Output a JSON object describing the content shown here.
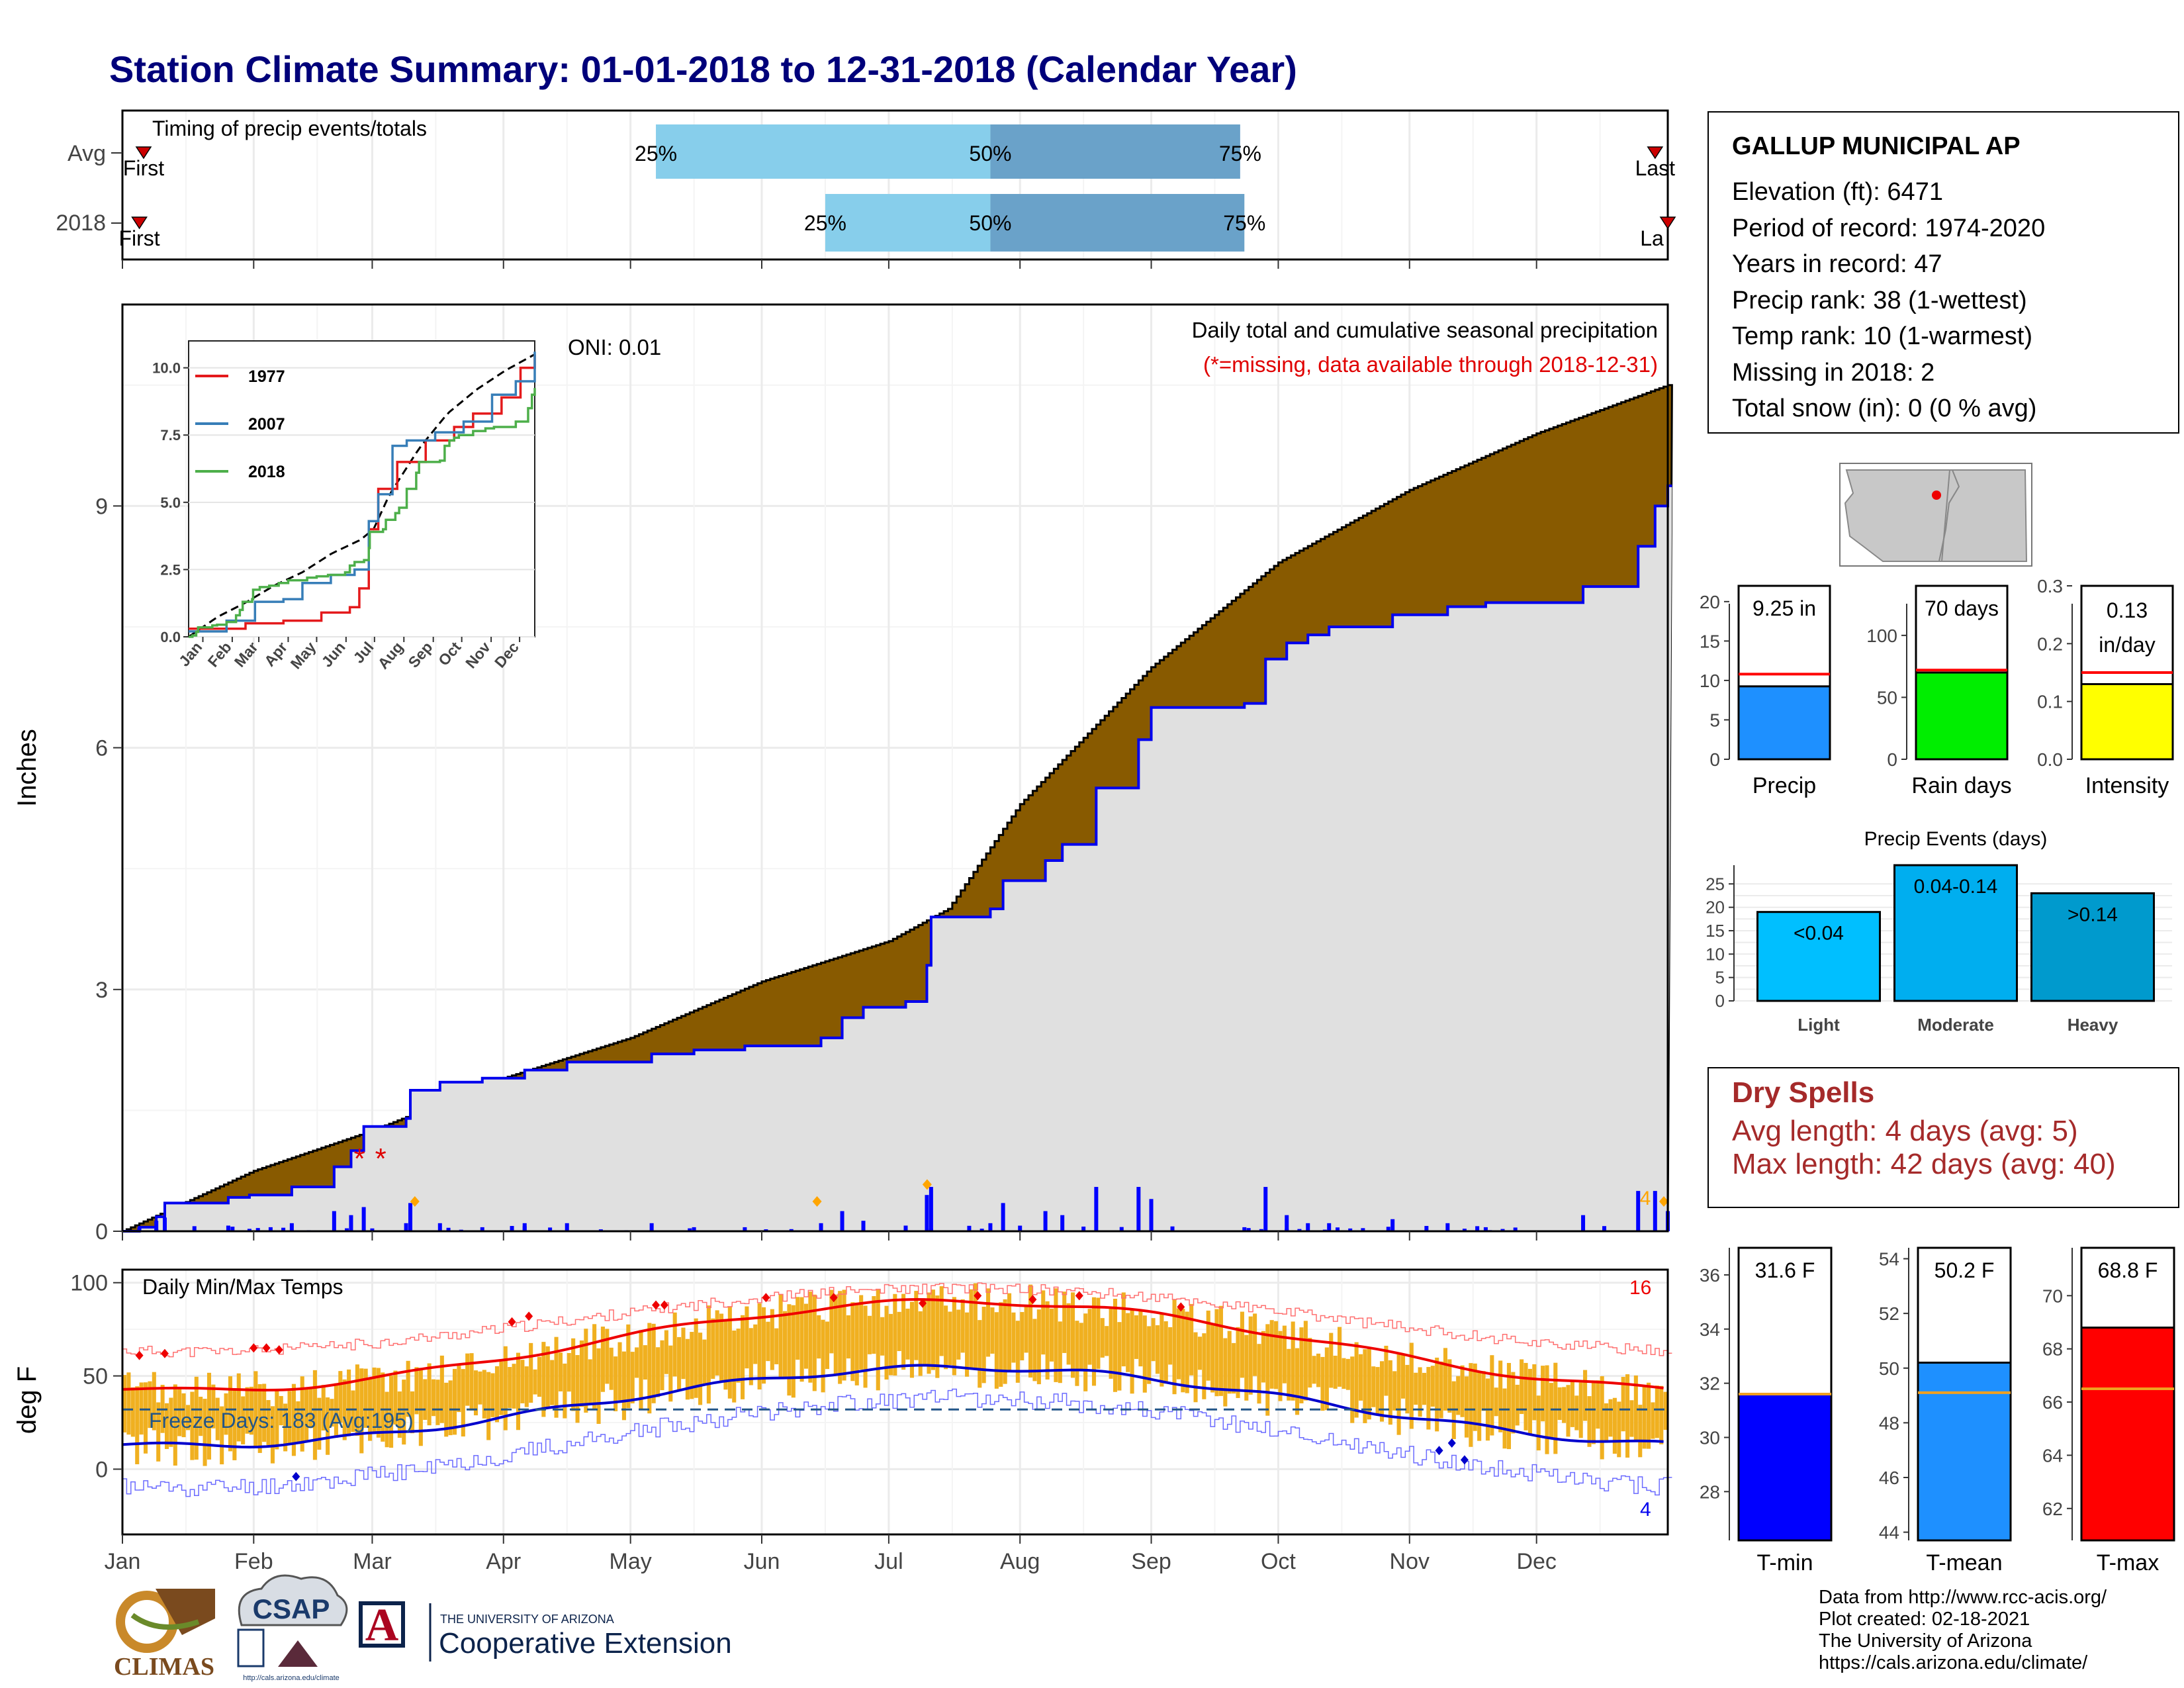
{
  "title": "Station Climate Summary: 01-01-2018 to 12-31-2018 (Calendar Year)",
  "colors": {
    "title": "#00007a",
    "cumulative_avg_fill": "#885a00",
    "cumulative_2018_line": "#0000ee",
    "area_fill": "#e0e0e0",
    "daily_bars": "#0000ff",
    "temp_bars": "#f0b020",
    "tmax_avg": "#ee0000",
    "tmin_avg": "#0000cc",
    "quartile_light": "#87ceeb",
    "quartile_dark": "#6aa2c9",
    "dry_spells": "#a52a2a"
  },
  "timing_panel": {
    "label": "Timing of precip events/totals",
    "rows": [
      {
        "name": "Avg",
        "first_label": "First",
        "last_label": "Last",
        "first_doy": 5,
        "last_doy": 362,
        "q25_doy": 126,
        "q50_doy": 205,
        "q75_doy": 264,
        "q25_label": "25%",
        "q50_label": "50%",
        "q75_label": "75%"
      },
      {
        "name": "2018",
        "first_label": "First",
        "last_label": "La",
        "first_doy": 4,
        "last_doy": 365,
        "q25_doy": 166,
        "q50_doy": 205,
        "q75_doy": 265,
        "q25_label": "25%",
        "q50_label": "50%",
        "q75_label": "75%"
      }
    ]
  },
  "precip_panel": {
    "ylabel": "Inches",
    "yticks": [
      0,
      3,
      6,
      9
    ],
    "ylim": [
      0,
      11.5
    ],
    "oni": "ONI: 0.01",
    "subtitle": "Daily total and cumulative seasonal precipitation",
    "missing_note": "(*=missing, data available through 2018-12-31)",
    "missing_marks": [
      "*",
      "*"
    ],
    "missing_doy": [
      56,
      61
    ],
    "corner_count": "4"
  },
  "inset": {
    "yticks": [
      "0.0",
      "2.5",
      "5.0",
      "7.5",
      "10.0"
    ],
    "months": [
      "Jan",
      "Feb",
      "Mar",
      "Apr",
      "May",
      "Jun",
      "Jul",
      "Aug",
      "Sep",
      "Oct",
      "Nov",
      "Dec"
    ],
    "legend": [
      {
        "name": "1977",
        "color": "#e41a1c"
      },
      {
        "name": "2007",
        "color": "#377eb8"
      },
      {
        "name": "2018",
        "color": "#4daf4a"
      }
    ]
  },
  "station_box": {
    "name": "GALLUP MUNICIPAL AP",
    "lines": [
      "Elevation (ft): 6471",
      "Period of record: 1974-2020",
      "Years in record: 47",
      "Precip rank: 38 (1-wettest)",
      "Temp rank: 10 (1-warmest)",
      "Missing in 2018: 2",
      "Total snow (in): 0 (0 % avg)"
    ]
  },
  "summary_bars": [
    {
      "label": "Precip",
      "value_label": "9.25 in",
      "value": 9.25,
      "avg": 10.8,
      "ymax": 22,
      "ticks": [
        "0",
        "5",
        "10",
        "15",
        "20"
      ],
      "tickvals": [
        0,
        5,
        10,
        15,
        20
      ],
      "color": "#1e90ff"
    },
    {
      "label": "Rain days",
      "value_label": "70 days",
      "value": 70,
      "avg": 72,
      "ymax": 140,
      "ticks": [
        "0",
        "50",
        "100"
      ],
      "tickvals": [
        0,
        50,
        100
      ],
      "color": "#00ee00"
    },
    {
      "label": "Intensity",
      "value_label_1": "0.13",
      "value_label_2": "in/day",
      "value": 0.13,
      "avg": 0.15,
      "ymax": 0.3,
      "ticks": [
        "0.0",
        "0.1",
        "0.2",
        "0.3"
      ],
      "tickvals": [
        0,
        0.1,
        0.2,
        0.3
      ],
      "color": "#ffff00"
    }
  ],
  "precip_events": {
    "title": "Precip Events (days)",
    "ticks": [
      "0",
      "5",
      "10",
      "15",
      "20",
      "25"
    ],
    "tickvals": [
      0,
      5,
      10,
      15,
      20,
      25
    ],
    "ymax": 29,
    "bars": [
      {
        "category": "Light",
        "label": "<0.04",
        "value": 19,
        "color": "#00bfff"
      },
      {
        "category": "Moderate",
        "label": "0.04-0.14",
        "value": 29,
        "color": "#00aeef"
      },
      {
        "category": "Heavy",
        "label": ">0.14",
        "value": 23,
        "color": "#009acd"
      }
    ]
  },
  "dry_spells": {
    "title": "Dry Spells",
    "avg_line": "Avg length: 4 days (avg: 5)",
    "max_line": "Max length: 42 days (avg: 40)"
  },
  "temp_panel": {
    "ylabel": "deg F",
    "title": "Daily Min/Max Temps",
    "yticks": [
      0,
      50,
      100
    ],
    "ylim": [
      -35,
      107
    ],
    "freeze_label": "Freeze Days: 183 (Avg:195)",
    "freeze_line": 32,
    "count_hot": "16",
    "count_cold": "4"
  },
  "x_months": [
    "Jan",
    "Feb",
    "Mar",
    "Apr",
    "May",
    "Jun",
    "Jul",
    "Aug",
    "Sep",
    "Oct",
    "Nov",
    "Dec"
  ],
  "temp_summary": [
    {
      "label": "T-min",
      "value_label": "31.6 F",
      "value": 31.6,
      "avg": 31.6,
      "ymin": 26.2,
      "ymax": 37.0,
      "ticks": [
        "28",
        "30",
        "32",
        "34",
        "36"
      ],
      "tickvals": [
        28,
        30,
        32,
        34,
        36
      ],
      "color": "#0000ff"
    },
    {
      "label": "T-mean",
      "value_label": "50.2 F",
      "value": 50.2,
      "avg": 49.1,
      "ymin": 43.7,
      "ymax": 54.4,
      "ticks": [
        "44",
        "46",
        "48",
        "50",
        "52",
        "54"
      ],
      "tickvals": [
        44,
        46,
        48,
        50,
        52,
        54
      ],
      "color": "#1e90ff"
    },
    {
      "label": "T-max",
      "value_label": "68.8 F",
      "value": 68.8,
      "avg": 66.5,
      "ymin": 60.8,
      "ymax": 71.8,
      "ticks": [
        "62",
        "64",
        "66",
        "68",
        "70"
      ],
      "tickvals": [
        62,
        64,
        66,
        68,
        70
      ],
      "color": "#ff0000"
    }
  ],
  "logos": {
    "climas": "CLIMAS",
    "csap": "CSAP",
    "csap_url": "http://cals.arizona.edu/climate",
    "ua_small": "THE UNIVERSITY OF ARIZONA",
    "ua_big": "Cooperative Extension",
    "ua_letter": "A"
  },
  "credits": [
    "Data from http://www.rcc-acis.org/",
    "Plot created: 02-18-2021",
    "The University of Arizona",
    "https://cals.arizona.edu/climate/"
  ]
}
